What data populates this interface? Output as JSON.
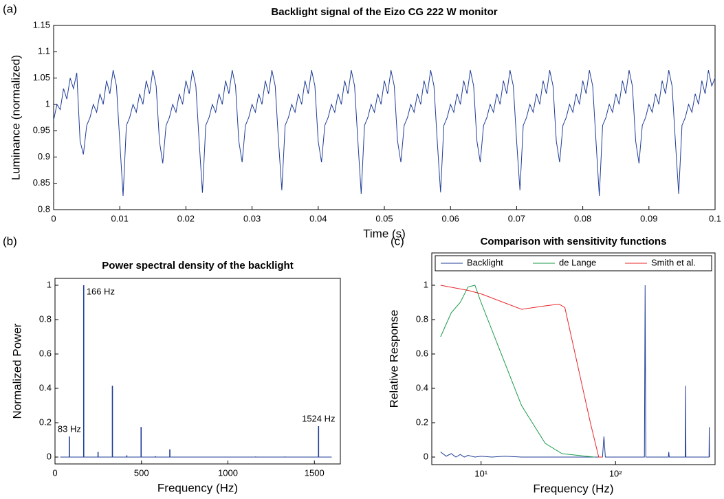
{
  "chart_data": [
    {
      "type": "line",
      "label": "(a)",
      "title": "Backlight signal of the Eizo CG 222 W monitor",
      "x_label": "Time (s)",
      "y_label": "Luminance (normalized)",
      "color": "#1f3c96",
      "xlim": [
        0,
        0.1
      ],
      "xticks": [
        0,
        0.01,
        0.02,
        0.03,
        0.04,
        0.05,
        0.06,
        0.07,
        0.08,
        0.09,
        0.1
      ],
      "ylim": [
        0.8,
        1.15
      ],
      "yticks": [
        0.8,
        0.85,
        0.9,
        0.95,
        1,
        1.05,
        1.1,
        1.15
      ],
      "x": [
        0,
        0.0005,
        0.001,
        0.0015,
        0.002,
        0.0025,
        0.003,
        0.0035,
        0.004,
        0.0045,
        0.005,
        0.0055,
        0.006,
        0.0065,
        0.007,
        0.0075,
        0.008,
        0.0085,
        0.009,
        0.0095,
        0.01,
        0.0105,
        0.011,
        0.0115,
        0.012,
        0.0125,
        0.013,
        0.0135,
        0.014,
        0.0145,
        0.015,
        0.0155,
        0.016,
        0.0165,
        0.017,
        0.0175,
        0.018,
        0.0185,
        0.019,
        0.0195,
        0.02,
        0.0205,
        0.021,
        0.0215,
        0.022,
        0.0225,
        0.023,
        0.0235,
        0.024,
        0.0245,
        0.025,
        0.0255,
        0.026,
        0.0265,
        0.027,
        0.0275,
        0.028,
        0.0285,
        0.029,
        0.0295,
        0.03,
        0.0305,
        0.031,
        0.0315,
        0.032,
        0.0325,
        0.033,
        0.0335,
        0.034,
        0.0345,
        0.035,
        0.0355,
        0.036,
        0.0365,
        0.037,
        0.0375,
        0.038,
        0.0385,
        0.039,
        0.0395,
        0.04,
        0.0405,
        0.041,
        0.0415,
        0.042,
        0.0425,
        0.043,
        0.0435,
        0.044,
        0.0445,
        0.045,
        0.0455,
        0.046,
        0.0465,
        0.047,
        0.0475,
        0.048,
        0.0485,
        0.049,
        0.0495,
        0.05,
        0.0505,
        0.051,
        0.0515,
        0.052,
        0.0525,
        0.053,
        0.0535,
        0.054,
        0.0545,
        0.055,
        0.0555,
        0.056,
        0.0565,
        0.057,
        0.0575,
        0.058,
        0.0585,
        0.059,
        0.0595,
        0.06,
        0.0605,
        0.061,
        0.0615,
        0.062,
        0.0625,
        0.063,
        0.0635,
        0.064,
        0.0645,
        0.065,
        0.0655,
        0.066,
        0.0665,
        0.067,
        0.0675,
        0.068,
        0.0685,
        0.069,
        0.0695,
        0.07,
        0.0705,
        0.071,
        0.0715,
        0.072,
        0.0725,
        0.073,
        0.0735,
        0.074,
        0.0745,
        0.075,
        0.0755,
        0.076,
        0.0765,
        0.077,
        0.0775,
        0.078,
        0.0785,
        0.079,
        0.0795,
        0.08,
        0.0805,
        0.081,
        0.0815,
        0.082,
        0.0825,
        0.083,
        0.0835,
        0.084,
        0.0845,
        0.085,
        0.0855,
        0.086,
        0.0865,
        0.087,
        0.0875,
        0.088,
        0.0885,
        0.089,
        0.0895,
        0.09,
        0.0905,
        0.091,
        0.0915,
        0.092,
        0.0925,
        0.093,
        0.0935,
        0.094,
        0.0945,
        0.095,
        0.0955,
        0.096,
        0.0965,
        0.097,
        0.0975,
        0.098,
        0.0985,
        0.099,
        0.0995,
        0.1
      ],
      "values": [
        0.97,
        1.0,
        0.99,
        1.03,
        1.01,
        1.05,
        1.03,
        1.06,
        0.93,
        0.905,
        0.96,
        0.975,
        1.0,
        0.985,
        1.02,
        1.0,
        1.045,
        1.02,
        1.065,
        1.035,
        0.93,
        0.826,
        0.96,
        0.975,
        1.0,
        0.985,
        1.02,
        1.0,
        1.045,
        1.02,
        1.065,
        1.035,
        0.93,
        0.888,
        0.96,
        0.975,
        1.0,
        0.985,
        1.02,
        1.0,
        1.045,
        1.02,
        1.065,
        1.035,
        0.93,
        0.832,
        0.96,
        0.975,
        1.0,
        0.985,
        1.02,
        1.0,
        1.045,
        1.02,
        1.065,
        1.035,
        0.93,
        0.89,
        0.96,
        0.975,
        1.0,
        0.985,
        1.02,
        1.0,
        1.045,
        1.02,
        1.065,
        1.035,
        0.93,
        0.837,
        0.96,
        0.975,
        1.0,
        0.985,
        1.02,
        1.0,
        1.045,
        1.02,
        1.065,
        1.035,
        0.93,
        0.89,
        0.96,
        0.975,
        1.0,
        0.985,
        1.02,
        1.0,
        1.045,
        1.02,
        1.065,
        1.035,
        0.93,
        0.83,
        0.96,
        0.975,
        1.0,
        0.985,
        1.02,
        1.0,
        1.045,
        1.02,
        1.065,
        1.035,
        0.93,
        0.89,
        0.96,
        0.975,
        1.0,
        0.985,
        1.02,
        1.0,
        1.045,
        1.02,
        1.065,
        1.035,
        0.93,
        0.833,
        0.96,
        0.975,
        1.0,
        0.985,
        1.02,
        1.0,
        1.045,
        1.02,
        1.065,
        1.035,
        0.93,
        0.89,
        0.96,
        0.975,
        1.0,
        0.985,
        1.02,
        1.0,
        1.045,
        1.02,
        1.065,
        1.035,
        0.93,
        0.837,
        0.96,
        0.975,
        1.0,
        0.985,
        1.02,
        1.0,
        1.045,
        1.02,
        1.065,
        1.035,
        0.93,
        0.89,
        0.96,
        0.975,
        1.0,
        0.985,
        1.02,
        1.0,
        1.045,
        1.02,
        1.065,
        1.035,
        0.93,
        0.826,
        0.96,
        0.975,
        1.0,
        0.985,
        1.02,
        1.0,
        1.045,
        1.02,
        1.065,
        1.035,
        0.93,
        0.888,
        0.96,
        0.975,
        1.0,
        0.985,
        1.02,
        1.0,
        1.045,
        1.02,
        1.065,
        1.035,
        0.93,
        0.83,
        0.96,
        0.975,
        1.0,
        0.985,
        1.02,
        1.0,
        1.045,
        1.02,
        1.065,
        1.035,
        1.05
      ]
    },
    {
      "type": "stem",
      "label": "(b)",
      "title": "Power spectral density of the backlight",
      "x_label": "Frequency (Hz)",
      "y_label": "Normalized Power",
      "color": "#1f3c96",
      "xlim": [
        0,
        1650
      ],
      "xticks": [
        0,
        500,
        1000,
        1500
      ],
      "ylim": [
        -0.04,
        1.04
      ],
      "yticks": [
        0,
        0.2,
        0.4,
        0.6,
        0.8,
        1
      ],
      "x": [
        30,
        83,
        166,
        249,
        332,
        415,
        498,
        581,
        664,
        1160,
        1330,
        1524,
        1600
      ],
      "values": [
        0,
        0.12,
        1.0,
        0.03,
        0.415,
        0.01,
        0.175,
        0.005,
        0.045,
        0.003,
        0.003,
        0.18,
        0
      ],
      "annotations": [
        {
          "text": "166 Hz",
          "x": 166
        },
        {
          "text": "83 Hz",
          "x": 83
        },
        {
          "text": "1524 Hz",
          "x": 1524
        }
      ]
    },
    {
      "type": "line",
      "label": "(c)",
      "title": "Comparison with sensitivity functions",
      "x_label": "Frequency (Hz)",
      "y_label": "Relative Response",
      "log_x": true,
      "legend": "top",
      "xlim": [
        4.3,
        550
      ],
      "xticks": [
        {
          "value": 10,
          "label": "10¹"
        },
        {
          "value": 100,
          "label": "10²"
        }
      ],
      "ylim": [
        -0.044,
        1.188
      ],
      "yticks": [
        0,
        0.2,
        0.4,
        0.6,
        0.8,
        1
      ],
      "series": [
        {
          "name": "Backlight",
          "color": "#1f3c96",
          "x": [
            5,
            5.5,
            6,
            6.5,
            7,
            7.5,
            8,
            9,
            10,
            12,
            15,
            20,
            30,
            40,
            60,
            80,
            82,
            84,
            164,
            166,
            168,
            247,
            249,
            251,
            330,
            332,
            334,
            496,
            498,
            500
          ],
          "values": [
            0.03,
            0.005,
            0.02,
            0.0,
            0.015,
            0.0,
            0.01,
            0.0,
            0.005,
            0.0,
            0.005,
            0,
            0,
            0,
            0,
            0,
            0.12,
            0,
            0,
            1,
            0,
            0,
            0.03,
            0,
            0,
            0.415,
            0,
            0,
            0.175,
            0
          ]
        },
        {
          "name": "de Lange",
          "color": "#1a9a4a",
          "x": [
            5,
            6,
            7,
            8,
            9,
            10,
            20,
            30,
            40,
            60,
            70
          ],
          "values": [
            0.7,
            0.84,
            0.9,
            0.99,
            1.0,
            0.9,
            0.3,
            0.08,
            0.02,
            0.005,
            0
          ]
        },
        {
          "name": "Smith et al.",
          "color": "#e8262a",
          "x": [
            5,
            8,
            10,
            20,
            30,
            38,
            42,
            65,
            75,
            80
          ],
          "values": [
            1.0,
            0.97,
            0.95,
            0.86,
            0.88,
            0.89,
            0.87,
            0.2,
            0,
            0
          ]
        }
      ]
    }
  ]
}
